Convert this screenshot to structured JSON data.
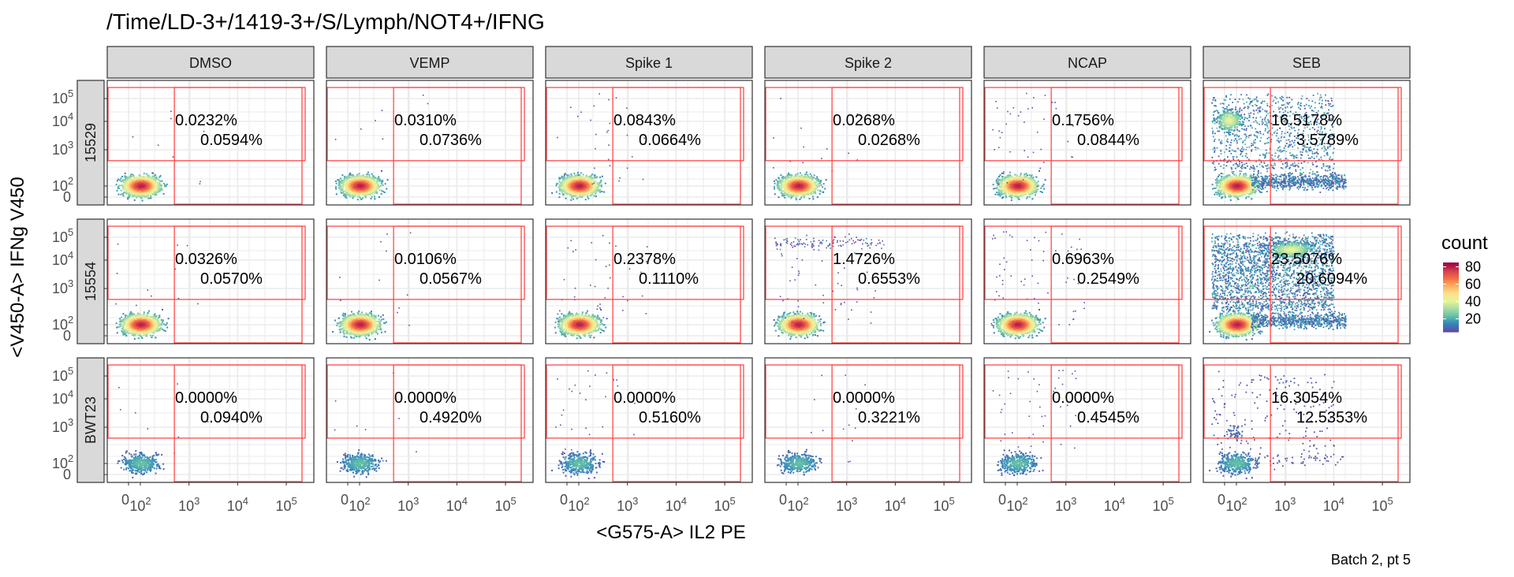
{
  "chart_data": {
    "type": "scatter",
    "title": "/Time/LD-3+/1419-3+/S/Lymph/NOT4+/IFNG",
    "xlabel": "<G575-A> IL2 PE",
    "ylabel": "<V450-A> IFNg V450",
    "caption": "Batch 2, pt 5",
    "columns": [
      "DMSO",
      "VEMP",
      "Spike 1",
      "Spike 2",
      "NCAP",
      "SEB"
    ],
    "rows": [
      "15529",
      "15554",
      "BWT23"
    ],
    "x_ticks": [
      {
        "base": "0",
        "exp": ""
      },
      {
        "base": "10",
        "exp": "2"
      },
      {
        "base": "10",
        "exp": "3"
      },
      {
        "base": "10",
        "exp": "4"
      },
      {
        "base": "10",
        "exp": "5"
      }
    ],
    "y_ticks": [
      {
        "base": "0",
        "exp": ""
      },
      {
        "base": "10",
        "exp": "2"
      },
      {
        "base": "10",
        "exp": "3"
      },
      {
        "base": "10",
        "exp": "4"
      },
      {
        "base": "10",
        "exp": "5"
      }
    ],
    "x_scale": "biexponential",
    "y_scale": "biexponential",
    "grid": true,
    "legend": {
      "title": "count",
      "ticks": [
        20,
        40,
        60,
        80
      ],
      "range": [
        5,
        85
      ],
      "palette": "Spectral",
      "position": "right"
    },
    "gates": {
      "x_threshold": 500,
      "y_threshold": 500
    },
    "percentages": [
      [
        "0.0232%",
        "0.0594%",
        "0.0310%",
        "0.0736%",
        "0.0843%",
        "0.0664%",
        "0.0268%",
        "0.0268%",
        "0.1756%",
        "0.0844%",
        "16.5178%",
        "3.5789%"
      ],
      [
        "0.0326%",
        "0.0570%",
        "0.0106%",
        "0.0567%",
        "0.2378%",
        "0.1110%",
        "1.4726%",
        "0.6553%",
        "0.6963%",
        "0.2549%",
        "23.5076%",
        "20.6094%"
      ],
      [
        "0.0000%",
        "0.0940%",
        "0.0000%",
        "0.4920%",
        "0.0000%",
        "0.5160%",
        "0.0000%",
        "0.3221%",
        "0.0000%",
        "0.4545%",
        "16.3054%",
        "12.5353%"
      ]
    ],
    "colors": {
      "gate": "#ff3b3b",
      "strip_bg": "#d9d9d9",
      "grid": "#ebebeb",
      "panel_border": "#333333"
    }
  }
}
